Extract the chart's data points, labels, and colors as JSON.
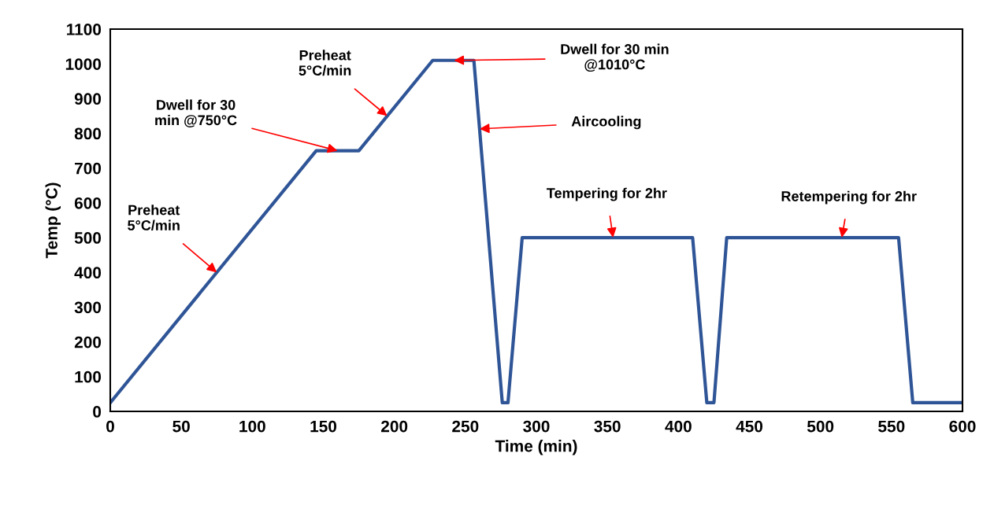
{
  "chart_data": {
    "type": "line",
    "xlabel": "Time (min)",
    "ylabel": "Temp (°C)",
    "x": [
      0,
      145,
      175,
      227,
      256,
      276,
      280,
      290,
      410,
      420,
      425,
      434,
      555,
      565,
      600
    ],
    "series": [
      {
        "color": "#2f5597",
        "values": [
          25,
          750,
          750,
          1010,
          1010,
          25,
          25,
          500,
          500,
          25,
          25,
          500,
          500,
          25,
          25
        ]
      }
    ],
    "xlim": [
      0,
      600
    ],
    "xticks": [
      0,
      50,
      100,
      150,
      200,
      250,
      300,
      350,
      400,
      450,
      500,
      550,
      600
    ],
    "ylim": [
      0,
      1100
    ],
    "yticks": [
      0,
      100,
      200,
      300,
      400,
      500,
      600,
      700,
      800,
      900,
      1000,
      1100
    ],
    "grid": false,
    "legend": false,
    "marker": "none",
    "line_style": "solid",
    "annotations": [
      {
        "text": "Preheat\n5°C/min",
        "x": 75,
        "y": 400
      },
      {
        "text": "Dwell for 30\nmin @750°C",
        "x": 160,
        "y": 750
      },
      {
        "text": "Preheat\n5°C/min",
        "x": 195,
        "y": 850
      },
      {
        "text": "Dwell for 30 min\n@1010°C",
        "x": 242,
        "y": 1010
      },
      {
        "text": "Aircooling",
        "x": 260,
        "y": 813
      },
      {
        "text": "Tempering for 2hr",
        "x": 354,
        "y": 500
      },
      {
        "text": "Retempering for 2hr",
        "x": 515,
        "y": 500
      }
    ]
  }
}
